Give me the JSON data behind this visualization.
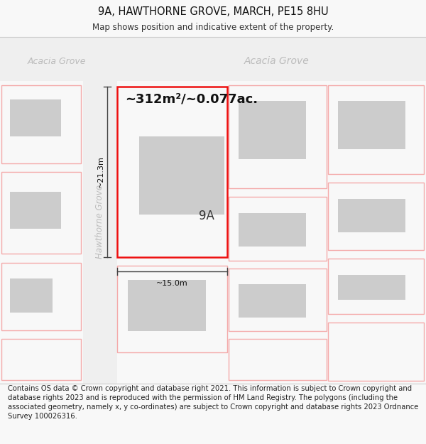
{
  "title": "9A, HAWTHORNE GROVE, MARCH, PE15 8HU",
  "subtitle": "Map shows position and indicative extent of the property.",
  "area_text": "~312m²/~0.077ac.",
  "dim_width": "~15.0m",
  "dim_height": "~21.3m",
  "label_9A": "9A",
  "footer": "Contains OS data © Crown copyright and database right 2021. This information is subject to Crown copyright and database rights 2023 and is reproduced with the permission of HM Land Registry. The polygons (including the associated geometry, namely x, y co-ordinates) are subject to Crown copyright and database rights 2023 Ordnance Survey 100026316.",
  "bg_color": "#f8f8f8",
  "map_bg": "#ffffff",
  "plot_outline_color": "#ee1111",
  "other_plot_color": "#f4aaaa",
  "building_fill": "#cccccc",
  "dim_line_color": "#444444",
  "road_text_color": "#bbbbbb",
  "footer_fontsize": 7.2,
  "title_fontsize": 10.5,
  "subtitle_fontsize": 8.5
}
